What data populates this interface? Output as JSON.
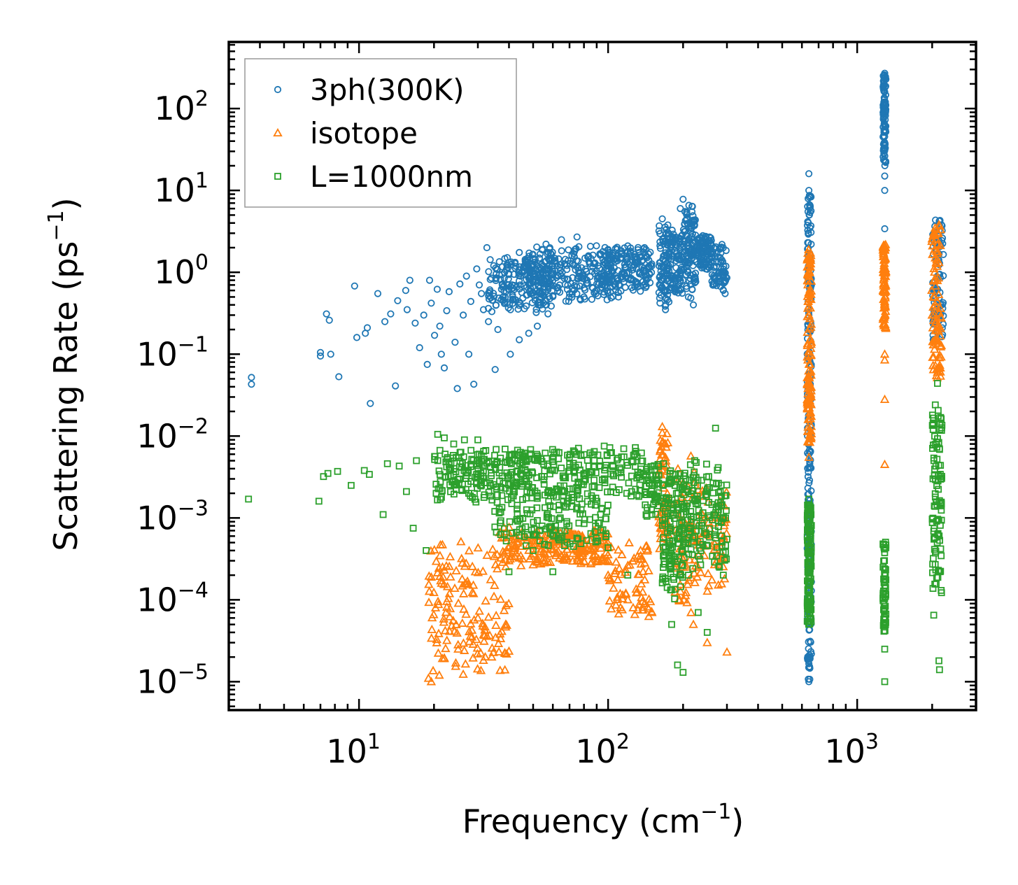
{
  "chart_data": {
    "type": "scatter",
    "xscale": "log",
    "yscale": "log",
    "xlim": [
      3,
      3000
    ],
    "ylim": [
      4.5e-06,
      650
    ],
    "xlabel": {
      "text": "Frequency (cm",
      "sup": "−1",
      "tail": ")"
    },
    "ylabel": {
      "text": "Scattering Rate (ps",
      "sup": "−1",
      "tail": ")"
    },
    "xticks": [
      {
        "base": "10",
        "exp": "1",
        "value": 10
      },
      {
        "base": "10",
        "exp": "2",
        "value": 100
      },
      {
        "base": "10",
        "exp": "3",
        "value": 1000
      }
    ],
    "yticks": [
      {
        "base": "10",
        "exp": "2",
        "value": 100
      },
      {
        "base": "10",
        "exp": "1",
        "value": 10
      },
      {
        "base": "10",
        "exp": "0",
        "value": 1
      },
      {
        "base": "10",
        "exp": "−1",
        "value": 0.1
      },
      {
        "base": "10",
        "exp": "−2",
        "value": 0.01
      },
      {
        "base": "10",
        "exp": "−3",
        "value": 0.001
      },
      {
        "base": "10",
        "exp": "−4",
        "value": 0.0001
      },
      {
        "base": "10",
        "exp": "−5",
        "value": 1e-05
      }
    ],
    "legend_position": "top-left",
    "series": [
      {
        "name": "3ph(300K)",
        "marker": "circle",
        "color": "#1f77b4",
        "points": [
          [
            3.7,
            0.052
          ],
          [
            3.7,
            0.043
          ],
          [
            7.0,
            0.105
          ],
          [
            7.0,
            0.095
          ],
          [
            7.4,
            0.31
          ],
          [
            7.6,
            0.26
          ],
          [
            7.7,
            0.1
          ],
          [
            8.3,
            0.053
          ],
          [
            9.6,
            0.68
          ],
          [
            9.8,
            0.16
          ],
          [
            10.6,
            0.18
          ],
          [
            10.8,
            0.21
          ],
          [
            11.1,
            0.025
          ],
          [
            11.9,
            0.55
          ],
          [
            12.7,
            0.25
          ],
          [
            13.4,
            0.31
          ],
          [
            14.0,
            0.041
          ],
          [
            14.3,
            0.45
          ],
          [
            15.4,
            0.6
          ],
          [
            15.6,
            0.35
          ],
          [
            16.0,
            0.8
          ],
          [
            16.8,
            0.24
          ],
          [
            17.5,
            0.12
          ],
          [
            18.2,
            0.3
          ],
          [
            18.8,
            0.075
          ],
          [
            19.2,
            0.8
          ],
          [
            19.5,
            0.42
          ],
          [
            20.1,
            0.17
          ],
          [
            20.6,
            0.62
          ],
          [
            21.1,
            0.22
          ],
          [
            21.4,
            0.1
          ],
          [
            22.0,
            0.068
          ],
          [
            22.5,
            0.34
          ],
          [
            23.0,
            0.58
          ],
          [
            24.3,
            0.14
          ],
          [
            24.8,
            0.038
          ],
          [
            25.4,
            0.72
          ],
          [
            26.2,
            0.3
          ],
          [
            27.0,
            0.9
          ],
          [
            27.6,
            0.1
          ],
          [
            28.1,
            0.44
          ],
          [
            28.9,
            0.043
          ],
          [
            29.7,
            1.1
          ],
          [
            30.4,
            0.7
          ],
          [
            31.0,
            0.55
          ],
          [
            31.6,
            0.35
          ],
          [
            32.6,
            2.0
          ],
          [
            33.1,
            0.25
          ],
          [
            34.0,
            0.85
          ],
          [
            35.2,
            0.065
          ],
          [
            36.1,
            0.2
          ],
          [
            38.0,
            0.5
          ],
          [
            40.5,
            0.1
          ],
          [
            44.0,
            0.15
          ],
          [
            48.0,
            0.18
          ],
          [
            52.0,
            0.22
          ],
          [
            56.0,
            0.4
          ],
          [
            60.0,
            0.52
          ],
          [
            65.0,
            2.5
          ],
          [
            70.0,
            0.55
          ],
          [
            75.0,
            2.7
          ],
          [
            80.0,
            0.5
          ],
          [
            90.0,
            0.6
          ],
          [
            100.0,
            1.9
          ],
          [
            110.0,
            0.5
          ],
          [
            120.0,
            2.1
          ],
          [
            130.0,
            1.1
          ],
          [
            140.0,
            2.0
          ],
          [
            160.0,
            3.2
          ],
          [
            165.0,
            4.5
          ],
          [
            170.0,
            0.35
          ],
          [
            175.0,
            1.2
          ],
          [
            185.0,
            0.6
          ],
          [
            195.0,
            6.0
          ],
          [
            200.0,
            7.8
          ],
          [
            210.0,
            0.5
          ],
          [
            220.0,
            0.4
          ],
          [
            240.0,
            2.8
          ],
          [
            250.0,
            1.9
          ],
          [
            260.0,
            1.5
          ],
          [
            280.0,
            1.0
          ],
          [
            290.0,
            0.6
          ],
          [
            295.0,
            0.55
          ],
          [
            640.0,
            16
          ],
          [
            640.0,
            10
          ],
          [
            640.0,
            0.04
          ],
          [
            640.0,
            0.015
          ],
          [
            640.0,
            0.006
          ],
          [
            640.0,
            1e-05
          ],
          [
            1290.0,
            270
          ],
          [
            1290.0,
            160
          ],
          [
            1290.0,
            60
          ],
          [
            1290.0,
            35
          ],
          [
            1290.0,
            15
          ],
          [
            1290.0,
            10
          ],
          [
            1290.0,
            3.4
          ],
          [
            2020.0,
            0.15
          ],
          [
            2070.0,
            0.5
          ],
          [
            2150.0,
            4.3
          ],
          [
            2180.0,
            3.8
          ]
        ],
        "bands": [
          [
            33,
            60,
            0.3,
            1.8,
            0.45,
            200
          ],
          [
            45,
            110,
            0.4,
            2.4,
            0.35,
            260
          ],
          [
            95,
            150,
            0.55,
            2.2,
            0.3,
            160
          ],
          [
            160,
            178,
            0.32,
            4.4,
            0.5,
            90
          ],
          [
            178,
            200,
            0.5,
            3.5,
            0.5,
            80
          ],
          [
            200,
            225,
            0.45,
            7.5,
            0.35,
            110
          ],
          [
            225,
            260,
            1.0,
            3.0,
            0.7,
            90
          ],
          [
            260,
            300,
            0.55,
            2.5,
            0.5,
            70
          ]
        ],
        "columns": [
          [
            630,
            655,
            1e-05,
            9,
            0.95,
            220
          ],
          [
            1270,
            1305,
            20,
            270,
            0.9,
            90
          ],
          [
            2010,
            2220,
            0.15,
            4.4,
            0.7,
            90
          ]
        ]
      },
      {
        "name": "isotope",
        "marker": "triangle",
        "color": "#ff7f0e",
        "points": [
          [
            19.0,
            1.1e-05
          ],
          [
            19.5,
            1e-05
          ],
          [
            21.0,
            1.2e-05
          ],
          [
            25.0,
            2.5e-05
          ],
          [
            30.0,
            6e-05
          ],
          [
            35.0,
            0.00015
          ],
          [
            40.0,
            0.0003
          ],
          [
            45.0,
            0.00045
          ],
          [
            50.0,
            0.0006
          ],
          [
            60.0,
            0.0005
          ],
          [
            70.0,
            0.0006
          ],
          [
            80.0,
            0.0004
          ],
          [
            90.0,
            0.0003
          ],
          [
            100.0,
            0.0002
          ],
          [
            120.0,
            0.0001
          ],
          [
            140.0,
            9e-05
          ],
          [
            150.0,
            7e-05
          ],
          [
            165.0,
            0.013
          ],
          [
            168.0,
            0.008
          ],
          [
            200.0,
            0.00025
          ],
          [
            215.0,
            0.0057
          ],
          [
            220.0,
            5e-05
          ],
          [
            250.0,
            3e-05
          ],
          [
            280.0,
            0.00035
          ],
          [
            300.0,
            2.3e-05
          ],
          [
            640.0,
            1.5
          ],
          [
            640.0,
            0.3
          ],
          [
            640.0,
            0.025
          ],
          [
            640.0,
            0.0055
          ],
          [
            1290.0,
            2.1
          ],
          [
            1290.0,
            0.1
          ],
          [
            1290.0,
            0.085
          ],
          [
            1290.0,
            0.028
          ],
          [
            1290.0,
            0.0045
          ],
          [
            2000.0,
            0.3
          ],
          [
            2100.0,
            0.06
          ],
          [
            2130.0,
            3.8
          ]
        ],
        "bands": [
          [
            19,
            40,
            1e-05,
            0.0007,
            0.9,
            160
          ],
          [
            38,
            100,
            0.00025,
            0.0008,
            0.5,
            200
          ],
          [
            100,
            150,
            5e-05,
            0.0006,
            0.7,
            70
          ],
          [
            160,
            175,
            0.0004,
            0.013,
            0.9,
            60
          ],
          [
            185,
            230,
            6e-05,
            0.0055,
            0.9,
            70
          ],
          [
            230,
            300,
            0.0001,
            0.003,
            0.9,
            60
          ]
        ],
        "columns": [
          [
            630,
            655,
            0.008,
            2.0,
            0.9,
            120
          ],
          [
            1270,
            1305,
            0.2,
            2.2,
            0.9,
            80
          ],
          [
            1990,
            2180,
            0.05,
            3.8,
            0.9,
            90
          ]
        ]
      },
      {
        "name": "L=1000nm",
        "marker": "square",
        "color": "#2ca02c",
        "points": [
          [
            3.6,
            0.0017
          ],
          [
            6.9,
            0.0016
          ],
          [
            7.2,
            0.0032
          ],
          [
            7.5,
            0.0035
          ],
          [
            8.2,
            0.0037
          ],
          [
            9.3,
            0.0025
          ],
          [
            10.5,
            0.0038
          ],
          [
            11.0,
            0.0034
          ],
          [
            12.5,
            0.0011
          ],
          [
            13.0,
            0.0046
          ],
          [
            14.5,
            0.0043
          ],
          [
            15.5,
            0.0021
          ],
          [
            16.5,
            0.00075
          ],
          [
            17.0,
            0.005
          ],
          [
            18.6,
            0.0004
          ],
          [
            20.7,
            0.0105
          ],
          [
            22.0,
            0.0095
          ],
          [
            24.0,
            0.008
          ],
          [
            26.5,
            0.009
          ],
          [
            30.0,
            0.009
          ],
          [
            35.0,
            0.0045
          ],
          [
            40.0,
            0.00022
          ],
          [
            50.0,
            0.0004
          ],
          [
            60.0,
            0.00022
          ],
          [
            120.0,
            0.0002
          ],
          [
            150.0,
            0.0011
          ],
          [
            165.0,
            0.0016
          ],
          [
            180.0,
            5e-05
          ],
          [
            190.0,
            1.6e-05
          ],
          [
            200.0,
            1.3e-05
          ],
          [
            210.0,
            0.0002
          ],
          [
            230.0,
            7e-05
          ],
          [
            250.0,
            4e-05
          ],
          [
            270.0,
            0.0125
          ],
          [
            280.0,
            0.00025
          ],
          [
            290.0,
            0.0002
          ],
          [
            640.0,
            0.0017
          ],
          [
            640.0,
            0.0011
          ],
          [
            1290.0,
            1e-05
          ],
          [
            1290.0,
            2.5e-05
          ],
          [
            2030.0,
            6.5e-05
          ],
          [
            2100.0,
            0.044
          ],
          [
            2130.0,
            1.8e-05
          ],
          [
            2140.0,
            1.4e-05
          ]
        ],
        "bands": [
          [
            20,
            140,
            0.0015,
            0.008,
            0.4,
            420
          ],
          [
            35,
            100,
            0.0004,
            0.002,
            0.6,
            140
          ],
          [
            140,
            160,
            0.001,
            0.005,
            0.5,
            50
          ],
          [
            165,
            200,
            0.0001,
            0.005,
            0.9,
            130
          ],
          [
            200,
            300,
            0.0002,
            0.006,
            0.9,
            150
          ]
        ],
        "columns": [
          [
            630,
            655,
            5e-05,
            0.0015,
            0.9,
            130
          ],
          [
            1270,
            1305,
            4e-05,
            0.0006,
            0.9,
            60
          ],
          [
            2000,
            2190,
            0.00012,
            0.03,
            0.9,
            100
          ]
        ]
      }
    ]
  }
}
